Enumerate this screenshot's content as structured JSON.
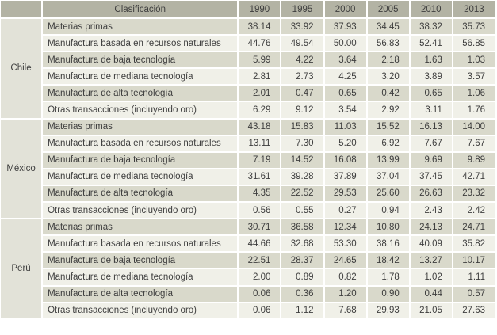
{
  "colors": {
    "header_bg": "#b3b3a4",
    "row_dark": "#d9d9cb",
    "row_light": "#f0f0e8",
    "country_bg": "#e2e2d8",
    "text": "#3e3e3e",
    "gap": "#ffffff"
  },
  "chart_data": {
    "type": "table",
    "title": "",
    "columns": [
      "Clasificación",
      "1990",
      "1995",
      "2000",
      "2005",
      "2010",
      "2013"
    ],
    "groups": [
      {
        "country": "Chile",
        "rows": [
          {
            "label": "Materias primas",
            "values": [
              "38.14",
              "33.92",
              "37.93",
              "34.45",
              "38.32",
              "35.73"
            ]
          },
          {
            "label": "Manufactura basada en recursos naturales",
            "values": [
              "44.76",
              "49.54",
              "50.00",
              "56.83",
              "52.41",
              "56.85"
            ]
          },
          {
            "label": "Manufactura de baja tecnología",
            "values": [
              "5.99",
              "4.22",
              "3.64",
              "2.18",
              "1.63",
              "1.03"
            ]
          },
          {
            "label": "Manufactura de mediana tecnología",
            "values": [
              "2.81",
              "2.73",
              "4.25",
              "3.20",
              "3.89",
              "3.57"
            ]
          },
          {
            "label": "Manufactura de alta tecnología",
            "values": [
              "2.01",
              "0.47",
              "0.65",
              "0.42",
              "0.65",
              "1.06"
            ]
          },
          {
            "label": "Otras transacciones (incluyendo oro)",
            "values": [
              "6.29",
              "9.12",
              "3.54",
              "2.92",
              "3.11",
              "1.76"
            ]
          }
        ]
      },
      {
        "country": "México",
        "rows": [
          {
            "label": "Materias primas",
            "values": [
              "43.18",
              "15.83",
              "11.03",
              "15.52",
              "16.13",
              "14.00"
            ]
          },
          {
            "label": "Manufactura basada en recursos naturales",
            "values": [
              "13.11",
              "7.30",
              "5.20",
              "6.92",
              "7.67",
              "7.67"
            ]
          },
          {
            "label": "Manufactura de baja tecnología",
            "values": [
              "7.19",
              "14.52",
              "16.08",
              "13.99",
              "9.69",
              "9.89"
            ]
          },
          {
            "label": "Manufactura de mediana tecnología",
            "values": [
              "31.61",
              "39.28",
              "37.89",
              "37.04",
              "37.45",
              "42.71"
            ]
          },
          {
            "label": "Manufactura de alta tecnología",
            "values": [
              "4.35",
              "22.52",
              "29.53",
              "25.60",
              "26.63",
              "23.32"
            ]
          },
          {
            "label": "Otras transacciones (incluyendo oro)",
            "values": [
              "0.56",
              "0.55",
              "0.27",
              "0.94",
              "2.43",
              "2.42"
            ]
          }
        ]
      },
      {
        "country": "Perú",
        "rows": [
          {
            "label": "Materias primas",
            "values": [
              "30.71",
              "36.58",
              "12.34",
              "10.80",
              "24.13",
              "24.71"
            ]
          },
          {
            "label": "Manufactura basada en recursos naturales",
            "values": [
              "44.66",
              "32.68",
              "53.30",
              "38.16",
              "40.09",
              "35.82"
            ]
          },
          {
            "label": "Manufactura de baja tecnología",
            "values": [
              "22.51",
              "28.37",
              "24.65",
              "18.42",
              "13.27",
              "10.17"
            ]
          },
          {
            "label": "Manufactura de mediana tecnología",
            "values": [
              "2.00",
              "0.89",
              "0.82",
              "1.78",
              "1.02",
              "1.11"
            ]
          },
          {
            "label": "Manufactura de alta tecnología",
            "values": [
              "0.06",
              "0.36",
              "1.20",
              "0.90",
              "0.44",
              "0.57"
            ]
          },
          {
            "label": "Otras transacciones (incluyendo oro)",
            "values": [
              "0.06",
              "1.12",
              "7.68",
              "29.93",
              "21.05",
              "27.63"
            ]
          }
        ]
      }
    ]
  }
}
